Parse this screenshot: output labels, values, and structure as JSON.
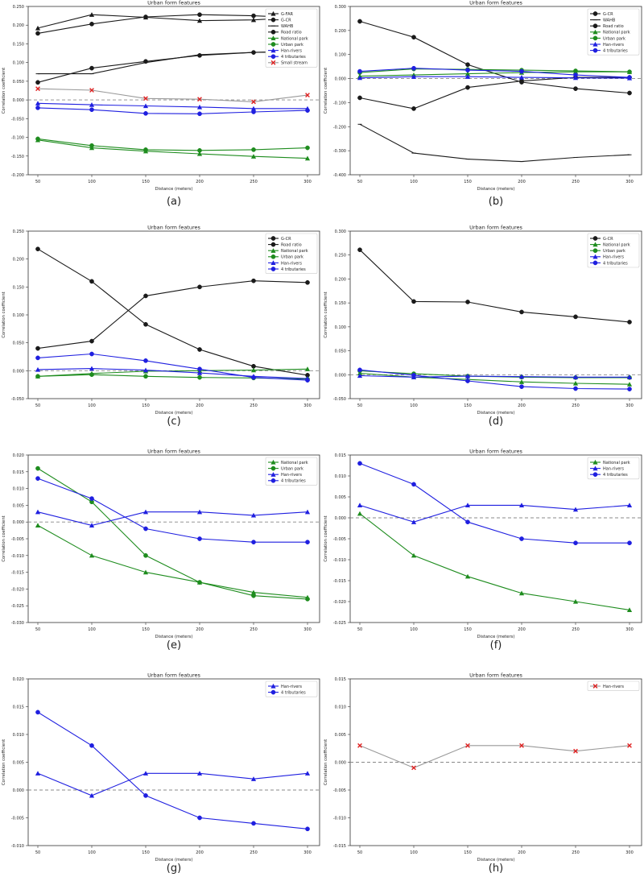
{
  "chart_data": [
    {
      "type": "line",
      "panel_label": "(a)",
      "title": "Urban form features",
      "xlabel": "Distance (meters)",
      "ylabel": "Correlation coefficient",
      "x": [
        50,
        100,
        150,
        200,
        250,
        300
      ],
      "ylim": [
        -0.2,
        0.25
      ],
      "yticks": [
        "0.250",
        "0.200",
        "0.150",
        "0.100",
        "0.050",
        "0.000",
        "-0.050",
        "-0.100",
        "-0.150",
        "-0.200"
      ],
      "ytick_values": [
        0.25,
        0.2,
        0.15,
        0.1,
        0.05,
        0,
        -0.05,
        -0.1,
        -0.15,
        -0.2
      ],
      "legend_position": "top-right",
      "series": [
        {
          "name": "G-FAR",
          "color": "#1a1a1a",
          "marker": "triangle",
          "values": [
            0.192,
            0.228,
            0.221,
            0.212,
            0.214,
            0.222
          ]
        },
        {
          "name": "G-CR",
          "color": "#1a1a1a",
          "marker": "circle",
          "values": [
            0.178,
            0.203,
            0.222,
            0.228,
            0.225,
            0.219
          ]
        },
        {
          "name": "WAHB",
          "color": "#1a1a1a",
          "marker": "line",
          "values": [
            0.07,
            0.07,
            0.1,
            0.121,
            0.127,
            0.13
          ]
        },
        {
          "name": "Road ratio",
          "color": "#1a1a1a",
          "marker": "circle",
          "values": [
            0.047,
            0.085,
            0.103,
            0.119,
            0.127,
            0.13
          ]
        },
        {
          "name": "National park",
          "color": "#1e8c1e",
          "marker": "triangle",
          "values": [
            -0.107,
            -0.128,
            -0.137,
            -0.144,
            -0.151,
            -0.156
          ]
        },
        {
          "name": "Urban park",
          "color": "#1e8c1e",
          "marker": "circle",
          "values": [
            -0.104,
            -0.122,
            -0.133,
            -0.135,
            -0.133,
            -0.128
          ]
        },
        {
          "name": "Han-rivers",
          "color": "#1f1fe0",
          "marker": "triangle",
          "values": [
            -0.009,
            -0.013,
            -0.016,
            -0.019,
            -0.023,
            -0.023
          ]
        },
        {
          "name": "4 tributaries",
          "color": "#1f1fe0",
          "marker": "circle",
          "values": [
            -0.021,
            -0.026,
            -0.036,
            -0.037,
            -0.032,
            -0.028
          ]
        },
        {
          "name": "Small stream",
          "color": "#999999",
          "marker": "x",
          "values": [
            0.03,
            0.026,
            0.004,
            0.002,
            -0.005,
            0.013
          ]
        }
      ]
    },
    {
      "type": "line",
      "panel_label": "(b)",
      "title": "Urban form features",
      "xlabel": "Distance (meters)",
      "ylabel": "Correlation coefficient",
      "x": [
        50,
        100,
        150,
        200,
        250,
        300
      ],
      "ylim": [
        -0.4,
        0.3
      ],
      "yticks": [
        "0.300",
        "0.200",
        "0.100",
        "0.000",
        "-0.100",
        "-0.200",
        "-0.300",
        "-0.400"
      ],
      "ytick_values": [
        0.3,
        0.2,
        0.1,
        0,
        -0.1,
        -0.2,
        -0.3,
        -0.4
      ],
      "legend_position": "top-right",
      "series": [
        {
          "name": "G-CR",
          "color": "#1a1a1a",
          "marker": "circle",
          "values": [
            0.238,
            0.172,
            0.058,
            -0.015,
            -0.042,
            -0.06
          ]
        },
        {
          "name": "WAHB",
          "color": "#1a1a1a",
          "marker": "line",
          "values": [
            -0.19,
            -0.31,
            -0.335,
            -0.345,
            -0.328,
            -0.317
          ]
        },
        {
          "name": "Road ratio",
          "color": "#1a1a1a",
          "marker": "circle",
          "values": [
            -0.08,
            -0.125,
            -0.037,
            -0.01,
            0.005,
            0.005
          ]
        },
        {
          "name": "National park",
          "color": "#1e8c1e",
          "marker": "triangle",
          "values": [
            0.01,
            0.015,
            0.02,
            0.025,
            0.028,
            0.028
          ]
        },
        {
          "name": "Urban park",
          "color": "#1e8c1e",
          "marker": "circle",
          "values": [
            0.025,
            0.04,
            0.038,
            0.035,
            0.032,
            0.028
          ]
        },
        {
          "name": "Han-rivers",
          "color": "#1f1fe0",
          "marker": "triangle",
          "values": [
            0.003,
            0.008,
            0.008,
            0.005,
            0.003,
            0.002
          ]
        },
        {
          "name": "4 tributaries",
          "color": "#1f1fe0",
          "marker": "circle",
          "values": [
            0.03,
            0.043,
            0.035,
            0.03,
            0.015,
            0.005
          ]
        }
      ]
    },
    {
      "type": "line",
      "panel_label": "(c)",
      "title": "Urban form features",
      "xlabel": "Distance (meters)",
      "ylabel": "Correlation coefficient",
      "x": [
        50,
        100,
        150,
        200,
        250,
        300
      ],
      "ylim": [
        -0.05,
        0.25
      ],
      "yticks": [
        "0.250",
        "0.200",
        "0.150",
        "0.100",
        "0.050",
        "0.000",
        "-0.050"
      ],
      "ytick_values": [
        0.25,
        0.2,
        0.15,
        0.1,
        0.05,
        0,
        -0.05
      ],
      "legend_position": "top-right",
      "series": [
        {
          "name": "G-CR",
          "color": "#1a1a1a",
          "marker": "circle",
          "values": [
            0.04,
            0.053,
            0.134,
            0.15,
            0.161,
            0.158
          ]
        },
        {
          "name": "Road ratio",
          "color": "#1a1a1a",
          "marker": "circle",
          "values": [
            0.218,
            0.16,
            0.083,
            0.038,
            0.008,
            -0.008
          ]
        },
        {
          "name": "National park",
          "color": "#1e8c1e",
          "marker": "triangle",
          "values": [
            -0.01,
            -0.005,
            -0.001,
            0.0,
            0.001,
            0.003
          ]
        },
        {
          "name": "Urban park",
          "color": "#1e8c1e",
          "marker": "circle",
          "values": [
            -0.01,
            -0.007,
            -0.01,
            -0.012,
            -0.013,
            -0.015
          ]
        },
        {
          "name": "Han-rivers",
          "color": "#1f1fe0",
          "marker": "triangle",
          "values": [
            0.002,
            0.004,
            0.001,
            -0.004,
            -0.01,
            -0.014
          ]
        },
        {
          "name": "4 tributaries",
          "color": "#1f1fe0",
          "marker": "circle",
          "values": [
            0.023,
            0.03,
            0.018,
            0.003,
            -0.012,
            -0.017
          ]
        }
      ]
    },
    {
      "type": "line",
      "panel_label": "(d)",
      "title": "Urban form features",
      "xlabel": "Distance (meters)",
      "ylabel": "Correlation coefficient",
      "x": [
        50,
        100,
        150,
        200,
        250,
        300
      ],
      "ylim": [
        -0.05,
        0.3
      ],
      "yticks": [
        "0.300",
        "0.250",
        "0.200",
        "0.150",
        "0.100",
        "0.050",
        "0.000",
        "-0.050"
      ],
      "ytick_values": [
        0.3,
        0.25,
        0.2,
        0.15,
        0.1,
        0.05,
        0,
        -0.05
      ],
      "legend_position": "top-right",
      "series": [
        {
          "name": "G-CR",
          "color": "#1a1a1a",
          "marker": "circle",
          "values": [
            0.261,
            0.153,
            0.152,
            0.131,
            0.121,
            0.11
          ]
        },
        {
          "name": "National park",
          "color": "#1e8c1e",
          "marker": "triangle",
          "values": [
            0.003,
            -0.005,
            -0.01,
            -0.015,
            -0.018,
            -0.02
          ]
        },
        {
          "name": "Urban park",
          "color": "#1e8c1e",
          "marker": "circle",
          "values": [
            0.008,
            0.002,
            -0.003,
            -0.005,
            -0.006,
            -0.006
          ]
        },
        {
          "name": "Han-rivers",
          "color": "#1f1fe0",
          "marker": "triangle",
          "values": [
            -0.002,
            -0.005,
            -0.003,
            -0.004,
            -0.005,
            -0.005
          ]
        },
        {
          "name": "4 tributaries",
          "color": "#1f1fe0",
          "marker": "circle",
          "values": [
            0.01,
            -0.001,
            -0.013,
            -0.025,
            -0.029,
            -0.03
          ]
        }
      ]
    },
    {
      "type": "line",
      "panel_label": "(e)",
      "title": "Urban form features",
      "xlabel": "Distance (meters)",
      "ylabel": "Correlation coefficient",
      "x": [
        50,
        100,
        150,
        200,
        250,
        300
      ],
      "ylim": [
        -0.03,
        0.02
      ],
      "yticks": [
        "0.020",
        "0.015",
        "0.010",
        "0.005",
        "0.000",
        "-0.005",
        "-0.010",
        "-0.015",
        "-0.020",
        "-0.025",
        "-0.030"
      ],
      "ytick_values": [
        0.02,
        0.015,
        0.01,
        0.005,
        0,
        -0.005,
        -0.01,
        -0.015,
        -0.02,
        -0.025,
        -0.03
      ],
      "legend_position": "top-right",
      "series": [
        {
          "name": "National park",
          "color": "#1e8c1e",
          "marker": "triangle",
          "values": [
            -0.001,
            -0.01,
            -0.015,
            -0.018,
            -0.021,
            -0.0225
          ]
        },
        {
          "name": "Urban park",
          "color": "#1e8c1e",
          "marker": "circle",
          "values": [
            0.016,
            0.006,
            -0.01,
            -0.018,
            -0.022,
            -0.023
          ]
        },
        {
          "name": "Han-rivers",
          "color": "#1f1fe0",
          "marker": "triangle",
          "values": [
            0.003,
            -0.001,
            0.003,
            0.003,
            0.002,
            0.003
          ]
        },
        {
          "name": "4 tributaries",
          "color": "#1f1fe0",
          "marker": "circle",
          "values": [
            0.013,
            0.007,
            -0.002,
            -0.005,
            -0.006,
            -0.006
          ]
        }
      ]
    },
    {
      "type": "line",
      "panel_label": "(f)",
      "title": "Urban form features",
      "xlabel": "Distance (meters)",
      "ylabel": "Correlation coefficient",
      "x": [
        50,
        100,
        150,
        200,
        250,
        300
      ],
      "ylim": [
        -0.025,
        0.015
      ],
      "yticks": [
        "0.015",
        "0.010",
        "0.005",
        "0.000",
        "-0.005",
        "-0.010",
        "-0.015",
        "-0.020",
        "-0.025"
      ],
      "ytick_values": [
        0.015,
        0.01,
        0.005,
        0,
        -0.005,
        -0.01,
        -0.015,
        -0.02,
        -0.025
      ],
      "legend_position": "top-right",
      "series": [
        {
          "name": "National park",
          "color": "#1e8c1e",
          "marker": "triangle",
          "values": [
            0.001,
            -0.009,
            -0.014,
            -0.018,
            -0.02,
            -0.022
          ]
        },
        {
          "name": "Han-rivers",
          "color": "#1f1fe0",
          "marker": "triangle",
          "values": [
            0.003,
            -0.001,
            0.003,
            0.003,
            0.002,
            0.003
          ]
        },
        {
          "name": "4 tributaries",
          "color": "#1f1fe0",
          "marker": "circle",
          "values": [
            0.013,
            0.008,
            -0.001,
            -0.005,
            -0.006,
            -0.006
          ]
        }
      ]
    },
    {
      "type": "line",
      "panel_label": "(g)",
      "title": "Urban form features",
      "xlabel": "Distance (meters)",
      "ylabel": "Correlation coefficient",
      "x": [
        50,
        100,
        150,
        200,
        250,
        300
      ],
      "ylim": [
        -0.01,
        0.02
      ],
      "yticks": [
        "0.020",
        "0.015",
        "0.010",
        "0.005",
        "0.000",
        "-0.005",
        "-0.010"
      ],
      "ytick_values": [
        0.02,
        0.015,
        0.01,
        0.005,
        0,
        -0.005,
        -0.01
      ],
      "legend_position": "top-right",
      "series": [
        {
          "name": "Han-rivers",
          "color": "#1f1fe0",
          "marker": "triangle",
          "values": [
            0.003,
            -0.001,
            0.003,
            0.003,
            0.002,
            0.003
          ]
        },
        {
          "name": "4 tributaries",
          "color": "#1f1fe0",
          "marker": "circle",
          "values": [
            0.014,
            0.008,
            -0.001,
            -0.005,
            -0.006,
            -0.007
          ]
        }
      ]
    },
    {
      "type": "line",
      "panel_label": "(h)",
      "title": "Urban form features",
      "xlabel": "Distance (meters)",
      "ylabel": "Correlation coefficient",
      "x": [
        50,
        100,
        150,
        200,
        250,
        300
      ],
      "ylim": [
        -0.015,
        0.015
      ],
      "yticks": [
        "0.015",
        "0.010",
        "0.005",
        "0.000",
        "-0.005",
        "-0.010",
        "-0.015"
      ],
      "ytick_values": [
        0.015,
        0.01,
        0.005,
        0,
        -0.005,
        -0.01,
        -0.015
      ],
      "legend_position": "top-right",
      "series": [
        {
          "name": "Han-rivers",
          "color": "#999999",
          "marker": "x",
          "values": [
            0.003,
            -0.001,
            0.003,
            0.003,
            0.002,
            0.003
          ]
        }
      ]
    }
  ]
}
